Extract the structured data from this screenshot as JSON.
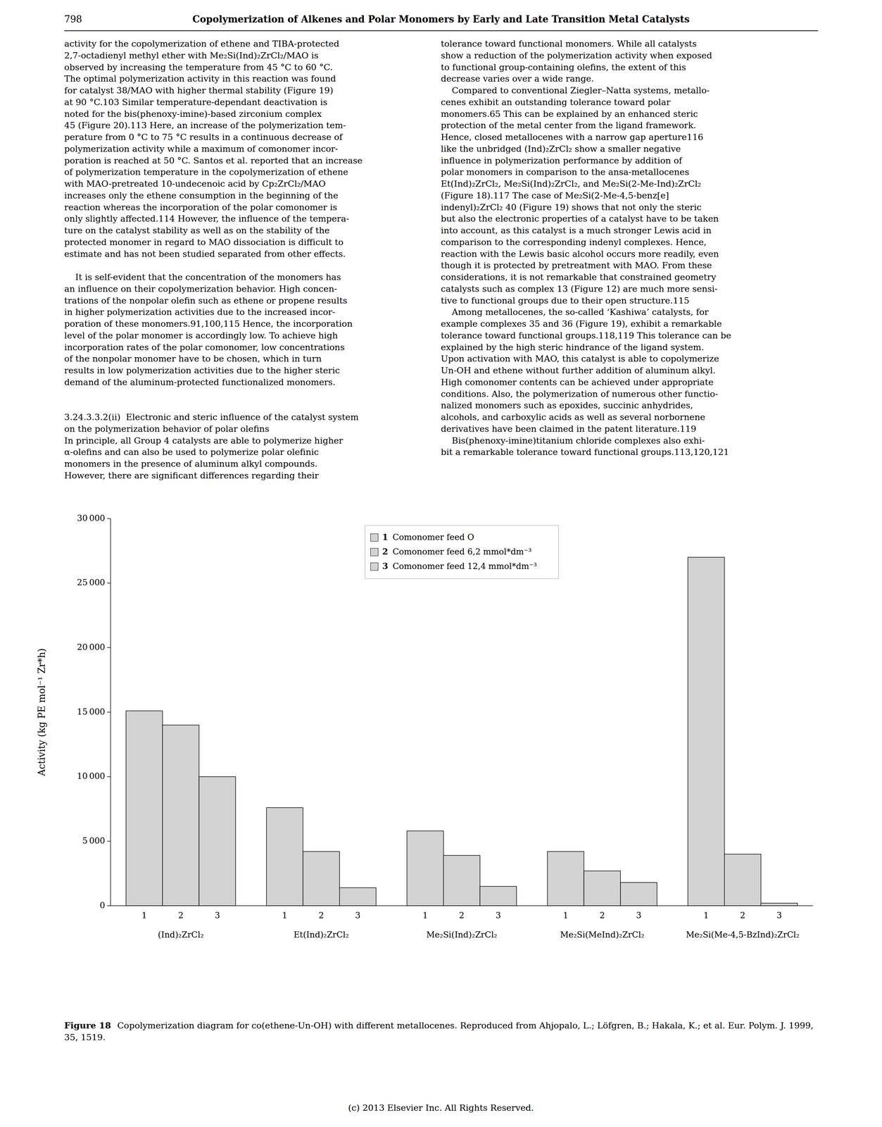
{
  "page_number": "798",
  "running_head": "Copolymerization of Alkenes and Polar Monomers by Early and Late Transition Metal Catalysts",
  "left_column": "activity for the copolymerization of ethene and TIBA-protected\n2,7-octadienyl methyl ether with Me₂Si(Ind)₂ZrCl₂/MAO is\nobserved by increasing the temperature from 45 °C to 60 °C.\nThe optimal polymerization activity in this reaction was found\nfor catalyst 38/MAO with higher thermal stability (Figure 19)\nat 90 °C.103 Similar temperature-dependant deactivation is\nnoted for the bis(phenoxy-imine)-based zirconium complex\n45 (Figure 20).113 Here, an increase of the polymerization tem-\nperature from 0 °C to 75 °C results in a continuous decrease of\npolymerization activity while a maximum of comonomer incor-\nporation is reached at 50 °C. Santos et al. reported that an increase\nof polymerization temperature in the copolymerization of ethene\nwith MAO-pretreated 10-undecenoic acid by Cp₂ZrCl₂/MAO\nincreases only the ethene consumption in the beginning of the\nreaction whereas the incorporation of the polar comonomer is\nonly slightly affected.114 However, the influence of the tempera-\nture on the catalyst stability as well as on the stability of the\nprotected monomer in regard to MAO dissociation is difficult to\nestimate and has not been studied separated from other effects.\n\n    It is self-evident that the concentration of the monomers has\nan influence on their copolymerization behavior. High concen-\ntrations of the nonpolar olefin such as ethene or propene results\nin higher polymerization activities due to the increased incor-\nporation of these monomers.91,100,115 Hence, the incorporation\nlevel of the polar monomer is accordingly low. To achieve high\nincorporation rates of the polar comonomer, low concentrations\nof the nonpolar monomer have to be chosen, which in turn\nresults in low polymerization activities due to the higher steric\ndemand of the aluminum-protected functionalized monomers.\n\n\n3.24.3.3.2(ii)  Electronic and steric influence of the catalyst system\non the polymerization behavior of polar olefins\nIn principle, all Group 4 catalysts are able to polymerize higher\nα-olefins and can also be used to polymerize polar olefinic\nmonomers in the presence of aluminum alkyl compounds.\nHowever, there are significant differences regarding their",
  "right_column": "tolerance toward functional monomers. While all catalysts\nshow a reduction of the polymerization activity when exposed\nto functional group-containing olefins, the extent of this\ndecrease varies over a wide range.\n    Compared to conventional Ziegler–Natta systems, metallo-\ncenes exhibit an outstanding tolerance toward polar\nmonomers.65 This can be explained by an enhanced steric\nprotection of the metal center from the ligand framework.\nHence, closed metallocenes with a narrow gap aperture116\nlike the unbridged (Ind)₂ZrCl₂ show a smaller negative\ninfluence in polymerization performance by addition of\npolar monomers in comparison to the ansa-metallocenes\nEt(Ind)₂ZrCl₂, Me₂Si(Ind)₂ZrCl₂, and Me₂Si(2-Me-Ind)₂ZrCl₂\n(Figure 18).117 The case of Me₂Si(2-Me-4,5-benz[e]\nindenyl)₂ZrCl₂ 40 (Figure 19) shows that not only the steric\nbut also the electronic properties of a catalyst have to be taken\ninto account, as this catalyst is a much stronger Lewis acid in\ncomparison to the corresponding indenyl complexes. Hence,\nreaction with the Lewis basic alcohol occurs more readily, even\nthough it is protected by pretreatment with MAO. From these\nconsiderations, it is not remarkable that constrained geometry\ncatalysts such as complex 13 (Figure 12) are much more sensi-\ntive to functional groups due to their open structure.115\n    Among metallocenes, the so-called ‘Kashiwa’ catalysts, for\nexample complexes 35 and 36 (Figure 19), exhibit a remarkable\ntolerance toward functional groups.118,119 This tolerance can be\nexplained by the high steric hindrance of the ligand system.\nUpon activation with MAO, this catalyst is able to copolymerize\nUn-OH and ethene without further addition of aluminum alkyl.\nHigh comonomer contents can be achieved under appropriate\nconditions. Also, the polymerization of numerous other functio-\nnalized monomers such as epoxides, succinic anhydrides,\nalcohols, and carboxylic acids as well as several norbornene\nderivatives have been claimed in the patent literature.119\n    Bis(phenoxy-imine)titanium chloride complexes also exhi-\nbit a remarkable tolerance toward functional groups.113,120,121",
  "chart_data": {
    "type": "bar",
    "y_label": "Activity (kg PE mol⁻¹ Zr*h)",
    "categories": [
      "(Ind)₂ZrCl₂",
      "Et(Ind)₂ZrCl₂",
      "Me₂Si(Ind)₂ZrCl₂",
      "Me₂Si(MeInd)₂ZrCl₂",
      "Me₂Si(Me-4,5-BzInd)₂ZrCl₂"
    ],
    "series": [
      {
        "name": "Comonomer feed O",
        "label": "1",
        "color": "#d3d3d3",
        "values": [
          15100,
          7600,
          5800,
          4200,
          27000
        ]
      },
      {
        "name": "Comonomer feed 6,2 mmol*dm⁻³",
        "label": "2",
        "color": "#d3d3d3",
        "values": [
          14000,
          4200,
          3900,
          2700,
          4000
        ]
      },
      {
        "name": "Comonomer feed 12,4 mmol*dm⁻³",
        "label": "3",
        "color": "#d3d3d3",
        "values": [
          10000,
          1400,
          1500,
          1800,
          200
        ]
      }
    ],
    "ylim": [
      0,
      30000
    ],
    "yticks": [
      0,
      {
        "value": 5000,
        "label": "5 000"
      },
      {
        "value": 10000,
        "label": "10 000"
      },
      {
        "value": 15000,
        "label": "15 000"
      },
      {
        "value": 20000,
        "label": "20 000"
      },
      {
        "value": 25000,
        "label": "25 000"
      },
      {
        "value": 30000,
        "label": "30 000"
      }
    ],
    "grid": false,
    "legend": "upper center"
  },
  "caption_label": "Figure 18",
  "caption": "Copolymerization diagram for co(ethene-Un-OH) with different metallocenes. Reproduced from Ahjopalo, L.; Löfgren, B.; Hakala, K.; et al. Eur. Polym. J. 1999, 35, 1519.",
  "copyright": "(c) 2013 Elsevier Inc. All Rights Reserved."
}
